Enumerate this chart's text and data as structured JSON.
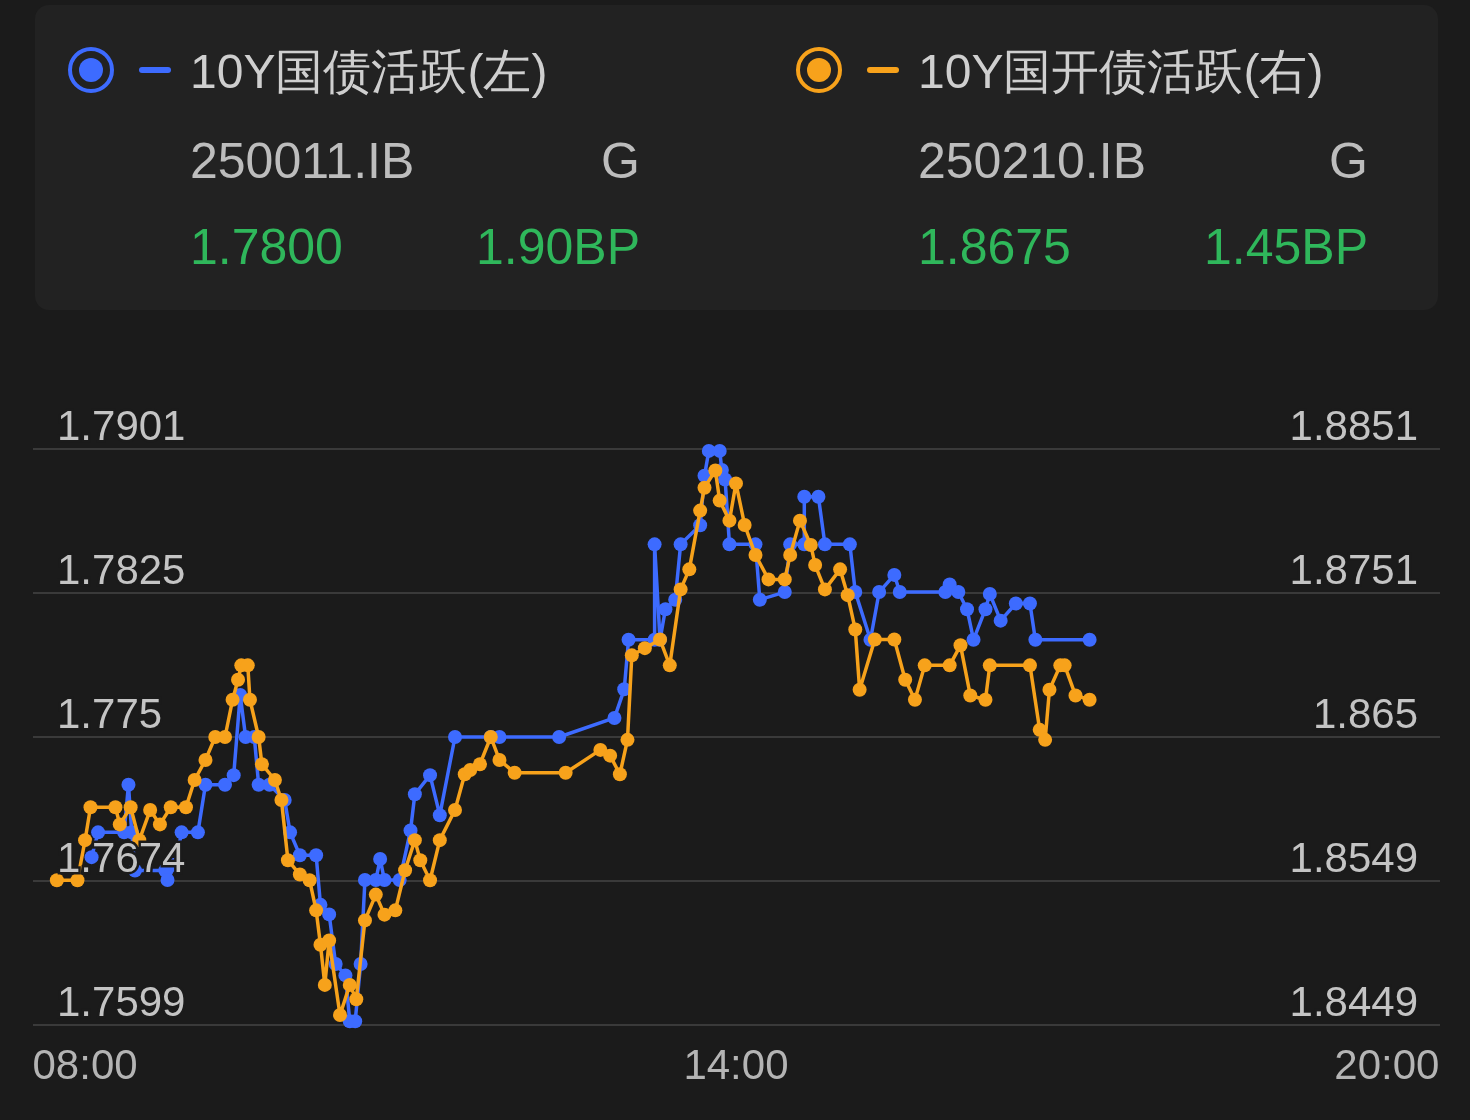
{
  "chart_data": {
    "type": "line",
    "marker": "circle",
    "line_style": "solid",
    "grid": "y",
    "legend": "top",
    "xlim": [
      7.52,
      20.49
    ],
    "xticks": [
      {
        "value": 8,
        "label": "08:00"
      },
      {
        "value": 14,
        "label": "14:00"
      },
      {
        "value": 20,
        "label": "20:00"
      }
    ],
    "ylim": [
      1.7599,
      1.7901
    ],
    "yticks": [
      1.7599,
      {
        "value": 1.76745,
        "label": "1.7674"
      },
      1.775,
      {
        "value": 1.78255,
        "label": "1.7825"
      },
      1.7901
    ],
    "y2lim": [
      1.8449,
      1.8851
    ],
    "y2ticks": [
      1.8449,
      {
        "value": 1.85495,
        "label": "1.8549"
      },
      1.865,
      {
        "value": 1.87505,
        "label": "1.8751"
      },
      1.8851
    ],
    "annotations": [
      "250011.IB",
      "G",
      "1.7800",
      "1.90BP",
      "250210.IB",
      "G",
      "1.8675",
      "1.45BP"
    ],
    "series": [
      {
        "name": "10Y国债活跃(左)",
        "color": "#3d6bff",
        "x": [
          8.06,
          8.12,
          8.36,
          8.4,
          8.43,
          8.46,
          8.74,
          8.76,
          8.83,
          8.89,
          9.04,
          9.11,
          9.29,
          9.37,
          9.43,
          9.48,
          9.56,
          9.6,
          9.7,
          9.84,
          9.89,
          9.98,
          10.13,
          10.17,
          10.25,
          10.31,
          10.4,
          10.44,
          10.49,
          10.54,
          10.58,
          10.68,
          10.72,
          10.76,
          10.9,
          11.0,
          11.04,
          11.18,
          11.27,
          11.41,
          11.74,
          11.82,
          12.37,
          12.88,
          12.97,
          13.01,
          13.25,
          13.25,
          13.3,
          13.35,
          13.44,
          13.49,
          13.67,
          13.71,
          13.75,
          13.85,
          13.87,
          13.9,
          13.94,
          14.18,
          14.22,
          14.45,
          14.5,
          14.63,
          14.63,
          14.76,
          14.82,
          15.05,
          15.1,
          15.24,
          15.32,
          15.46,
          15.51,
          15.93,
          15.97,
          16.05,
          16.13,
          16.19,
          16.3,
          16.34,
          16.44,
          16.58,
          16.71,
          16.76,
          17.26
        ],
        "values": [
          1.7687,
          1.77,
          1.77,
          1.7725,
          1.77,
          1.768,
          1.768,
          1.7675,
          1.7683,
          1.77,
          1.77,
          1.7725,
          1.7725,
          1.773,
          1.7772,
          1.775,
          1.775,
          1.7725,
          1.7725,
          1.7717,
          1.77,
          1.7688,
          1.7688,
          1.7662,
          1.7657,
          1.7631,
          1.7625,
          1.7601,
          1.7601,
          1.7631,
          1.7675,
          1.7675,
          1.7686,
          1.7675,
          1.7675,
          1.7701,
          1.772,
          1.773,
          1.7709,
          1.775,
          1.775,
          1.775,
          1.775,
          1.776,
          1.7775,
          1.7801,
          1.7801,
          1.7851,
          1.7801,
          1.7817,
          1.7822,
          1.7851,
          1.7861,
          1.7887,
          1.79,
          1.79,
          1.789,
          1.7885,
          1.7851,
          1.7851,
          1.7822,
          1.7826,
          1.7851,
          1.7851,
          1.7876,
          1.7876,
          1.7851,
          1.7851,
          1.7826,
          1.7801,
          1.7826,
          1.7835,
          1.7826,
          1.7826,
          1.783,
          1.7826,
          1.7817,
          1.7801,
          1.7817,
          1.7825,
          1.7811,
          1.782,
          1.782,
          1.7801,
          1.7801
        ]
      },
      {
        "name": "10Y国开债活跃(右)",
        "color": "#f7a21b",
        "axis": "y2",
        "x": [
          7.74,
          7.93,
          8.0,
          8.05,
          8.28,
          8.32,
          8.42,
          8.5,
          8.6,
          8.69,
          8.79,
          8.93,
          9.01,
          9.11,
          9.2,
          9.29,
          9.36,
          9.41,
          9.44,
          9.5,
          9.52,
          9.6,
          9.63,
          9.75,
          9.81,
          9.87,
          9.98,
          10.07,
          10.13,
          10.17,
          10.21,
          10.25,
          10.35,
          10.44,
          10.5,
          10.58,
          10.68,
          10.76,
          10.86,
          10.95,
          11.04,
          11.09,
          11.18,
          11.27,
          11.41,
          11.5,
          11.55,
          11.64,
          11.74,
          11.82,
          11.96,
          12.43,
          12.75,
          12.84,
          12.93,
          13.0,
          13.04,
          13.16,
          13.3,
          13.39,
          13.49,
          13.57,
          13.67,
          13.71,
          13.81,
          13.85,
          13.94,
          14.0,
          14.08,
          14.18,
          14.3,
          14.45,
          14.5,
          14.59,
          14.69,
          14.73,
          14.82,
          14.96,
          15.03,
          15.1,
          15.14,
          15.28,
          15.46,
          15.56,
          15.65,
          15.74,
          15.97,
          16.07,
          16.16,
          16.3,
          16.34,
          16.71,
          16.8,
          16.85,
          16.89,
          16.99,
          17.03,
          17.13,
          17.26
        ],
        "values": [
          1.855,
          1.855,
          1.8578,
          1.8601,
          1.8601,
          1.8589,
          1.8601,
          1.8578,
          1.8599,
          1.8589,
          1.8601,
          1.8601,
          1.862,
          1.8634,
          1.865,
          1.865,
          1.8676,
          1.869,
          1.87,
          1.87,
          1.8676,
          1.865,
          1.8631,
          1.862,
          1.8606,
          1.8564,
          1.8554,
          1.855,
          1.8529,
          1.8505,
          1.8477,
          1.8508,
          1.8456,
          1.8477,
          1.8467,
          1.8522,
          1.854,
          1.8526,
          1.8529,
          1.8557,
          1.8578,
          1.8564,
          1.855,
          1.8578,
          1.8599,
          1.8624,
          1.8627,
          1.8631,
          1.865,
          1.8634,
          1.8625,
          1.8625,
          1.8641,
          1.8637,
          1.8624,
          1.8648,
          1.8707,
          1.8712,
          1.8718,
          1.87,
          1.8753,
          1.8767,
          1.8808,
          1.8824,
          1.8836,
          1.8815,
          1.8801,
          1.8827,
          1.8798,
          1.8777,
          1.876,
          1.876,
          1.8777,
          1.8801,
          1.8784,
          1.877,
          1.8753,
          1.8767,
          1.8749,
          1.8725,
          1.8683,
          1.8718,
          1.8718,
          1.869,
          1.8676,
          1.87,
          1.87,
          1.8714,
          1.8679,
          1.8676,
          1.87,
          1.87,
          1.8655,
          1.8648,
          1.8683,
          1.87,
          1.87,
          1.8679,
          1.8676
        ]
      }
    ]
  }
}
